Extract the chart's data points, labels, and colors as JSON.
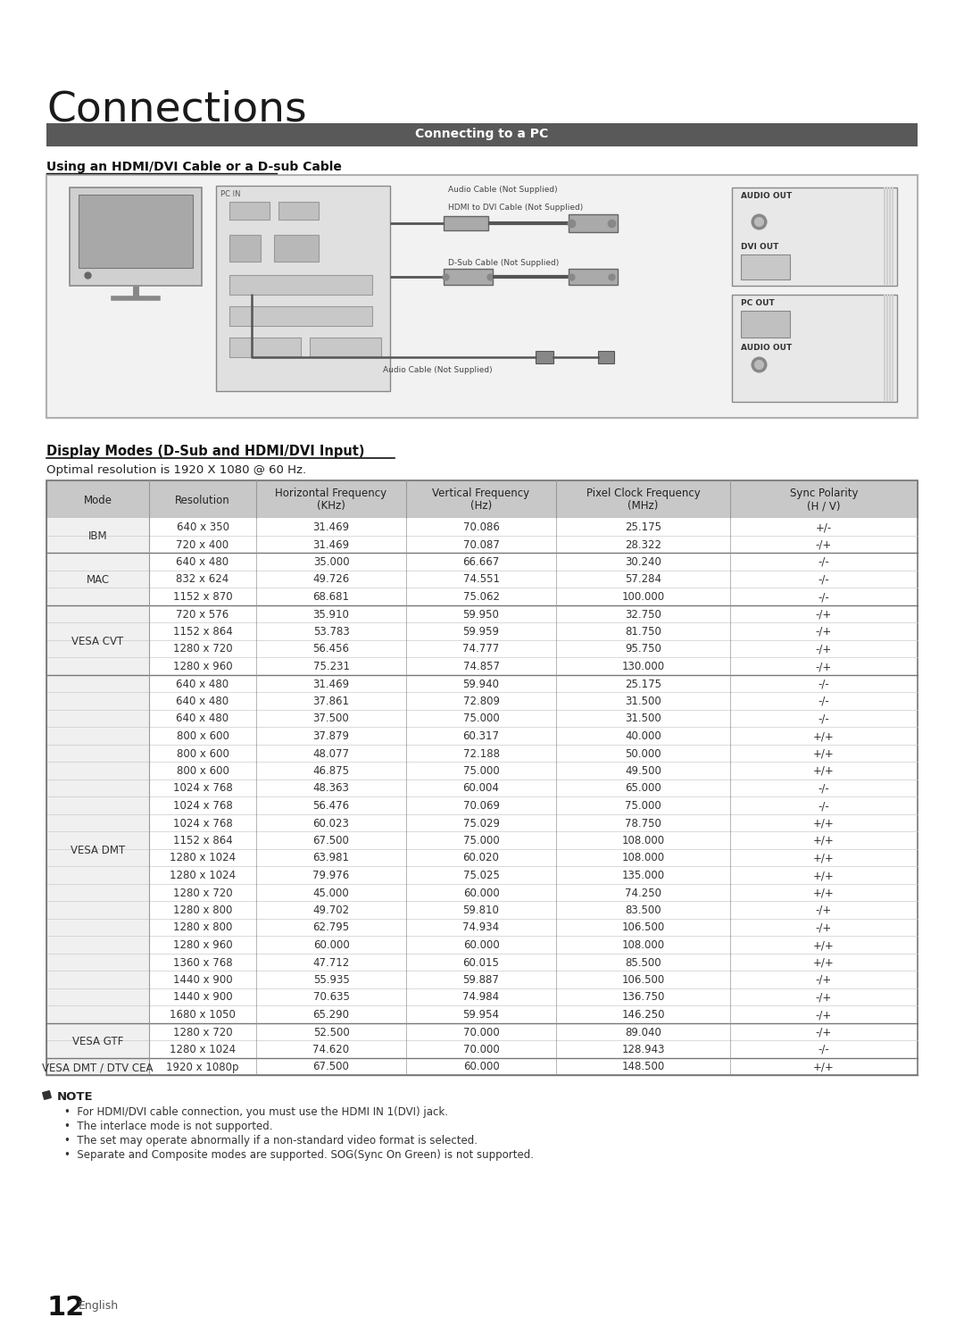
{
  "page_title": "Connections",
  "section_title": "Connecting to a PC",
  "subsection_title": "Using an HDMI/DVI Cable or a D-sub Cable",
  "display_modes_title": "Display Modes (D-Sub and HDMI/DVI Input)",
  "optimal_resolution": "Optimal resolution is 1920 X 1080 @ 60 Hz.",
  "table_headers": [
    "Mode",
    "Resolution",
    "Horizontal Frequency\n(KHz)",
    "Vertical Frequency\n(Hz)",
    "Pixel Clock Frequency\n(MHz)",
    "Sync Polarity\n(H / V)"
  ],
  "table_data": [
    [
      "IBM",
      "640 x 350",
      "31.469",
      "70.086",
      "25.175",
      "+/-"
    ],
    [
      "IBM",
      "720 x 400",
      "31.469",
      "70.087",
      "28.322",
      "-/+"
    ],
    [
      "MAC",
      "640 x 480",
      "35.000",
      "66.667",
      "30.240",
      "-/-"
    ],
    [
      "MAC",
      "832 x 624",
      "49.726",
      "74.551",
      "57.284",
      "-/-"
    ],
    [
      "MAC",
      "1152 x 870",
      "68.681",
      "75.062",
      "100.000",
      "-/-"
    ],
    [
      "VESA CVT",
      "720 x 576",
      "35.910",
      "59.950",
      "32.750",
      "-/+"
    ],
    [
      "VESA CVT",
      "1152 x 864",
      "53.783",
      "59.959",
      "81.750",
      "-/+"
    ],
    [
      "VESA CVT",
      "1280 x 720",
      "56.456",
      "74.777",
      "95.750",
      "-/+"
    ],
    [
      "VESA CVT",
      "1280 x 960",
      "75.231",
      "74.857",
      "130.000",
      "-/+"
    ],
    [
      "VESA DMT",
      "640 x 480",
      "31.469",
      "59.940",
      "25.175",
      "-/-"
    ],
    [
      "VESA DMT",
      "640 x 480",
      "37.861",
      "72.809",
      "31.500",
      "-/-"
    ],
    [
      "VESA DMT",
      "640 x 480",
      "37.500",
      "75.000",
      "31.500",
      "-/-"
    ],
    [
      "VESA DMT",
      "800 x 600",
      "37.879",
      "60.317",
      "40.000",
      "+/+"
    ],
    [
      "VESA DMT",
      "800 x 600",
      "48.077",
      "72.188",
      "50.000",
      "+/+"
    ],
    [
      "VESA DMT",
      "800 x 600",
      "46.875",
      "75.000",
      "49.500",
      "+/+"
    ],
    [
      "VESA DMT",
      "1024 x 768",
      "48.363",
      "60.004",
      "65.000",
      "-/-"
    ],
    [
      "VESA DMT",
      "1024 x 768",
      "56.476",
      "70.069",
      "75.000",
      "-/-"
    ],
    [
      "VESA DMT",
      "1024 x 768",
      "60.023",
      "75.029",
      "78.750",
      "+/+"
    ],
    [
      "VESA DMT",
      "1152 x 864",
      "67.500",
      "75.000",
      "108.000",
      "+/+"
    ],
    [
      "VESA DMT",
      "1280 x 1024",
      "63.981",
      "60.020",
      "108.000",
      "+/+"
    ],
    [
      "VESA DMT",
      "1280 x 1024",
      "79.976",
      "75.025",
      "135.000",
      "+/+"
    ],
    [
      "VESA DMT",
      "1280 x 720",
      "45.000",
      "60.000",
      "74.250",
      "+/+"
    ],
    [
      "VESA DMT",
      "1280 x 800",
      "49.702",
      "59.810",
      "83.500",
      "-/+"
    ],
    [
      "VESA DMT",
      "1280 x 800",
      "62.795",
      "74.934",
      "106.500",
      "-/+"
    ],
    [
      "VESA DMT",
      "1280 x 960",
      "60.000",
      "60.000",
      "108.000",
      "+/+"
    ],
    [
      "VESA DMT",
      "1360 x 768",
      "47.712",
      "60.015",
      "85.500",
      "+/+"
    ],
    [
      "VESA DMT",
      "1440 x 900",
      "55.935",
      "59.887",
      "106.500",
      "-/+"
    ],
    [
      "VESA DMT",
      "1440 x 900",
      "70.635",
      "74.984",
      "136.750",
      "-/+"
    ],
    [
      "VESA DMT",
      "1680 x 1050",
      "65.290",
      "59.954",
      "146.250",
      "-/+"
    ],
    [
      "VESA GTF",
      "1280 x 720",
      "52.500",
      "70.000",
      "89.040",
      "-/+"
    ],
    [
      "VESA GTF",
      "1280 x 1024",
      "74.620",
      "70.000",
      "128.943",
      "-/-"
    ],
    [
      "VESA DMT / DTV CEA",
      "1920 x 1080p",
      "67.500",
      "60.000",
      "148.500",
      "+/+"
    ]
  ],
  "notes": [
    "For HDMI/DVI cable connection, you must use the HDMI IN 1(DVI) jack.",
    "The interlace mode is not supported.",
    "The set may operate abnormally if a non-standard video format is selected.",
    "Separate and Composite modes are supported. SOG(Sync On Green) is not supported."
  ],
  "page_number": "12",
  "page_language": "English",
  "bg_color": "#ffffff",
  "section_bar_color": "#595959",
  "table_header_bg": "#c8c8c8",
  "table_border_color": "#999999",
  "table_group_sep_color": "#555555"
}
